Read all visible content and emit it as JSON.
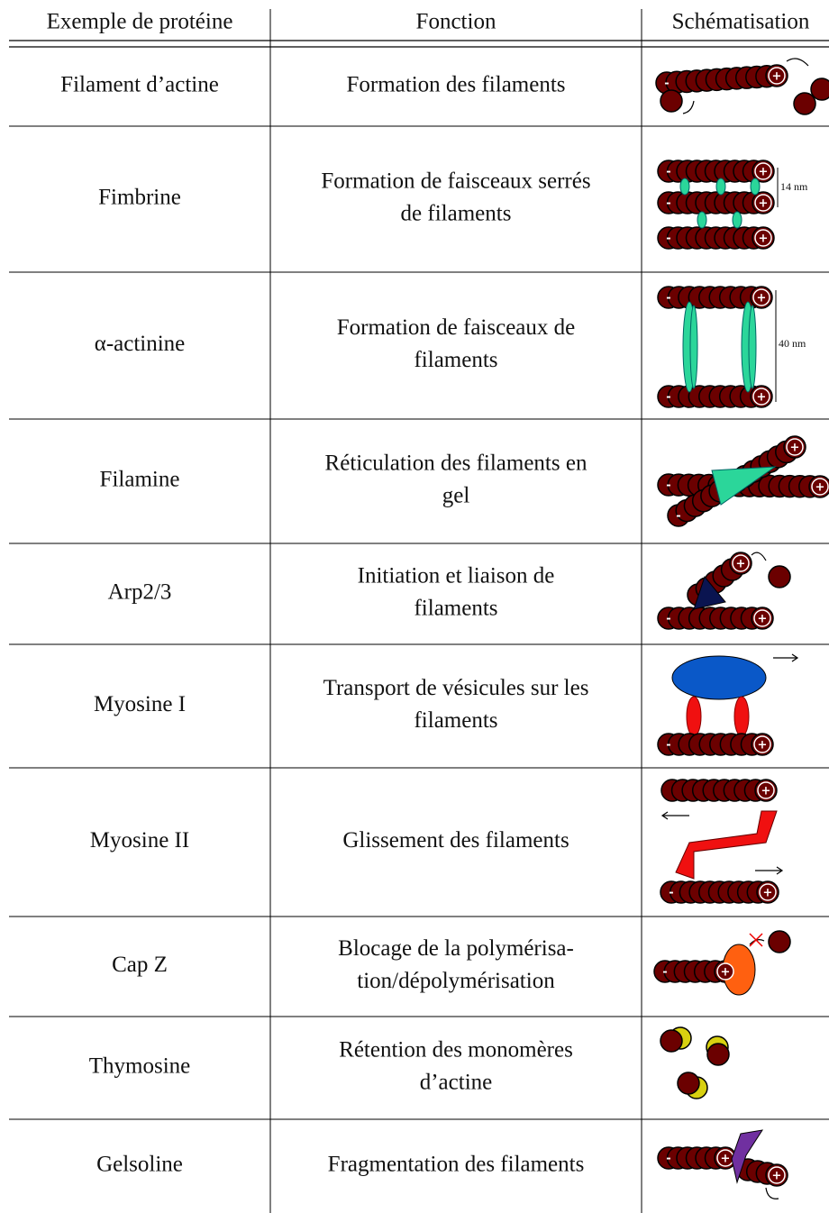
{
  "header": {
    "columns": [
      "Exemple de protéine",
      "Fonction",
      "Schématisation"
    ]
  },
  "table": {
    "rows": [
      {
        "protein": "Filament d’actine",
        "function": [
          "Formation des filaments"
        ]
      },
      {
        "protein": "Fimbrine",
        "function": [
          "Formation de faisceaux serrés",
          "de filaments"
        ],
        "schematic_label": "14 nm"
      },
      {
        "protein": "α-actinine",
        "function": [
          "Formation de faisceaux de",
          "filaments"
        ],
        "schematic_label": "40 nm"
      },
      {
        "protein": "Filamine",
        "function": [
          "Réticulation des filaments en",
          "gel"
        ]
      },
      {
        "protein": "Arp2/3",
        "function": [
          "Initiation et liaison de",
          "filaments"
        ]
      },
      {
        "protein": "Myosine I",
        "function": [
          "Transport de vésicules sur les",
          "filaments"
        ]
      },
      {
        "protein": "Myosine II",
        "function": [
          "Glissement des filaments"
        ]
      },
      {
        "protein": "Cap Z",
        "function": [
          "Blocage de la polymérisa-",
          "tion/dépolymérisation"
        ]
      },
      {
        "protein": "Thymosine",
        "function": [
          "Rétention des monomères",
          "d’actine"
        ]
      },
      {
        "protein": "Gelsoline",
        "function": [
          "Fragmentation des filaments"
        ]
      }
    ]
  },
  "schematic_signs": {
    "plus": "+",
    "minus": "-"
  }
}
